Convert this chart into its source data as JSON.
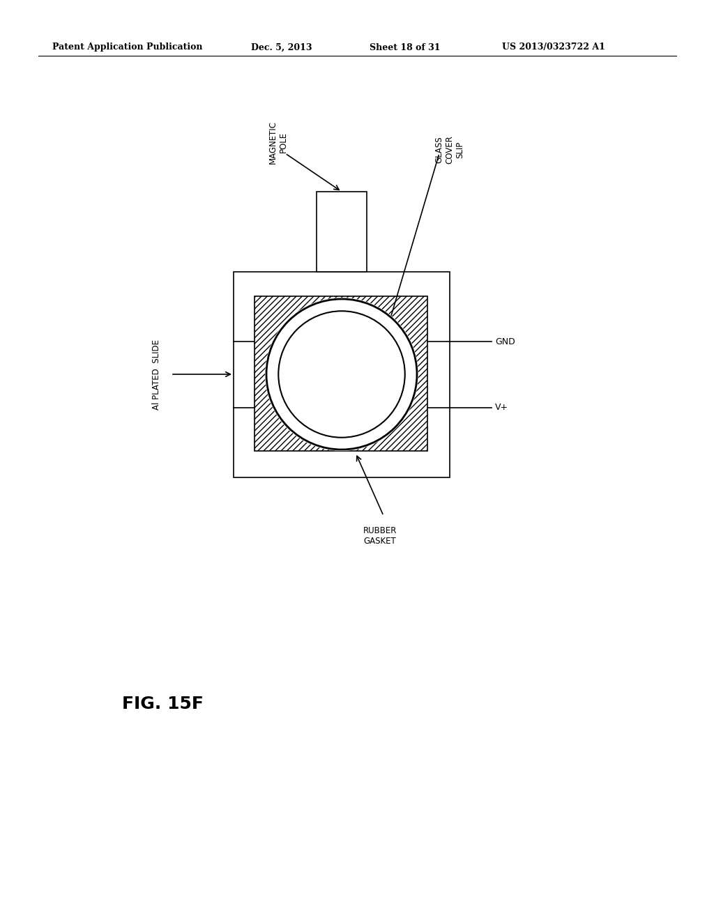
{
  "bg_color": "#ffffff",
  "line_color": "#000000",
  "header_text": "Patent Application Publication",
  "header_date": "Dec. 5, 2013",
  "header_sheet": "Sheet 18 of 31",
  "header_patent": "US 2013/0323722 A1",
  "fig_label": "FIG. 15F",
  "labels": {
    "magnetic_pole": "MAGNETIC\nPOLE",
    "glass_cover_slip": "GLASS\nCOVER\nSLIP",
    "ai_plated_slide": "Al PLATED  SLIDE",
    "rubber_gasket": "RUBBER\nGASKET",
    "gnd": "GND",
    "vplus": "V+"
  }
}
